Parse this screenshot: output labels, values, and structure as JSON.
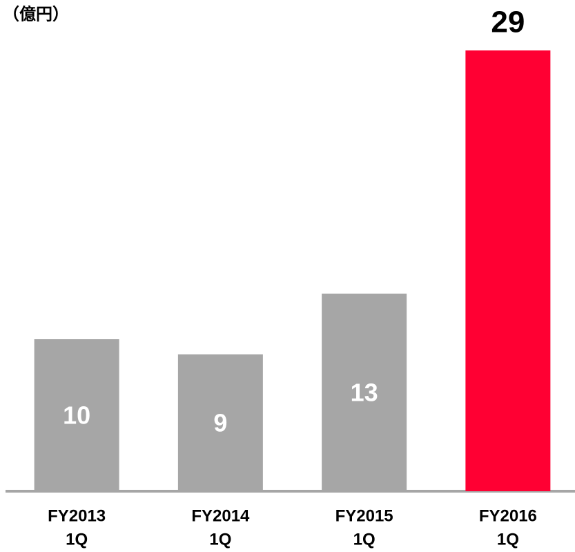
{
  "chart_data": {
    "type": "bar",
    "unit_label": "（億円）",
    "categories": [
      [
        "FY2013",
        "1Q"
      ],
      [
        "FY2014",
        "1Q"
      ],
      [
        "FY2015",
        "1Q"
      ],
      [
        "FY2016",
        "1Q"
      ]
    ],
    "values": [
      10,
      9,
      13,
      29
    ],
    "colors": [
      "#a6a6a6",
      "#a6a6a6",
      "#a6a6a6",
      "#ff0033"
    ],
    "label_positions": [
      "inside",
      "inside",
      "inside",
      "above"
    ],
    "ylim": [
      0,
      29
    ]
  }
}
